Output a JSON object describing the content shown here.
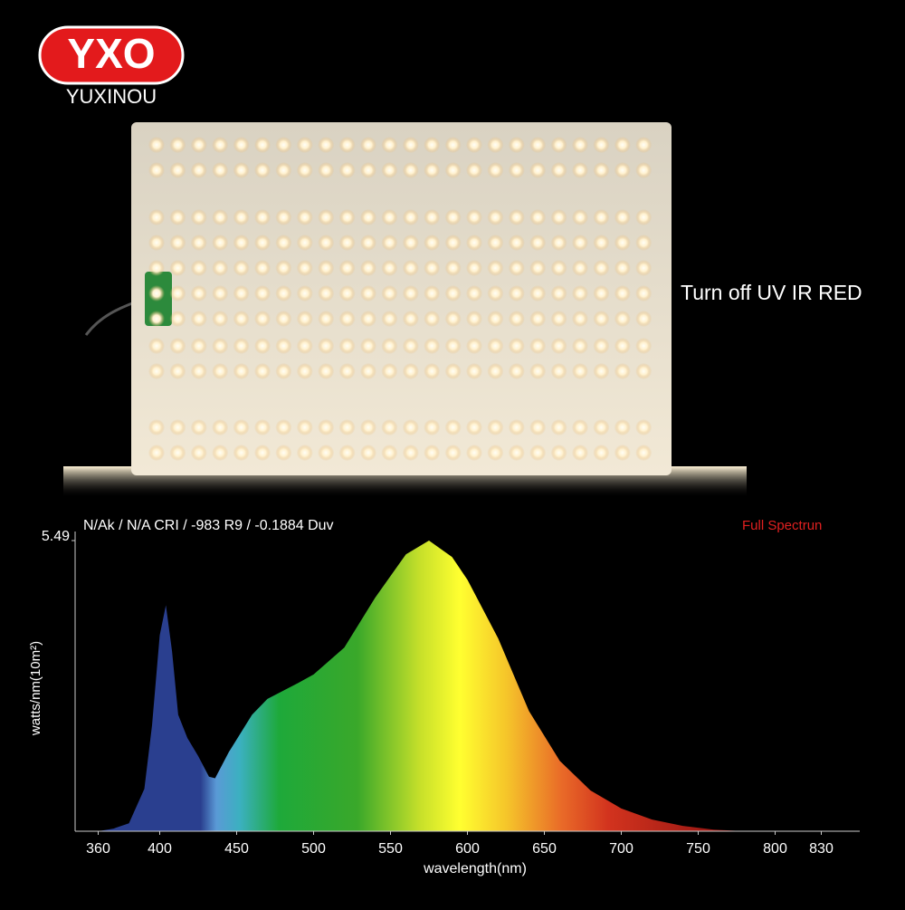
{
  "logo": {
    "mark": "YXO",
    "brand": "YUXINOU"
  },
  "photo": {
    "caption": "Turn off UV IR RED"
  },
  "chart_data": {
    "type": "area",
    "title": "N/Ak / N/A CRI / -983 R9 / -0.1884 Duv",
    "subtitle": "Full Spectrun",
    "y_label": "watts/nm(10m²)",
    "x_label": "wavelength(nm)",
    "x": [
      360,
      370,
      380,
      390,
      395,
      400,
      404,
      408,
      412,
      418,
      425,
      432,
      436,
      445,
      460,
      470,
      490,
      500,
      520,
      540,
      560,
      575,
      590,
      600,
      620,
      640,
      660,
      680,
      700,
      720,
      740,
      760,
      780,
      830
    ],
    "values": [
      0,
      0.05,
      0.15,
      0.8,
      2.0,
      3.7,
      4.27,
      3.4,
      2.2,
      1.76,
      1.42,
      1.03,
      1.0,
      1.5,
      2.2,
      2.5,
      2.8,
      2.96,
      3.47,
      4.41,
      5.23,
      5.49,
      5.18,
      4.75,
      3.64,
      2.27,
      1.33,
      0.77,
      0.43,
      0.22,
      0.1,
      0.03,
      0,
      0
    ],
    "xlim": [
      345,
      855
    ],
    "ylim": [
      0,
      5.49
    ],
    "xticks": [
      360,
      400,
      450,
      500,
      550,
      600,
      650,
      700,
      750,
      800,
      830
    ],
    "yticks": [
      5.49
    ]
  }
}
